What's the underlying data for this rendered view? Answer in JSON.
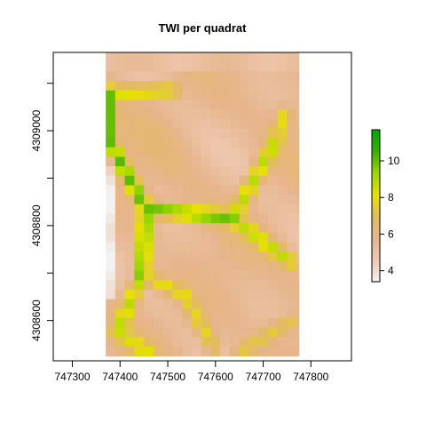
{
  "chart_data": {
    "type": "heatmap",
    "title": "TWI per quadrat",
    "xlabel": "",
    "ylabel": "",
    "x_ticks": [
      747300,
      747400,
      747500,
      747600,
      747700,
      747800
    ],
    "y_ticks": [
      4308600,
      4308800,
      4309000
    ],
    "xlim": [
      747260,
      747885
    ],
    "ylim": [
      4308515,
      4309165
    ],
    "raster_extent": {
      "xmin": 747370,
      "xmax": 747775,
      "ymin": 4308525,
      "ymax": 4309165
    },
    "cell_size": 20,
    "colorbar": {
      "ticks": [
        4,
        6,
        8,
        10
      ],
      "range": [
        3.4,
        11.7
      ]
    },
    "palette": [
      "#f2f2f2",
      "#eec9b1",
      "#e6b58c",
      "#e3bb60",
      "#e6e100",
      "#9ed700",
      "#3bb000",
      "#00a600"
    ],
    "grid": false,
    "legend_position": "right",
    "channels": [
      {
        "name": "upper-left-channel",
        "start": [
          747375,
          4309080
        ],
        "end": [
          747375,
          4308980
        ],
        "peak": 10.5
      },
      {
        "name": "upper-cross-channel",
        "start": [
          747385,
          4309080
        ],
        "end": [
          747510,
          4309085
        ],
        "peak": 8.6
      },
      {
        "name": "left-diagonal-channel",
        "start": [
          747375,
          4308980
        ],
        "end": [
          747455,
          4308835
        ],
        "peak": 10.2
      },
      {
        "name": "center-cross-channel",
        "start": [
          747455,
          4308835
        ],
        "end": [
          747635,
          4308815
        ],
        "peak": 10.0
      },
      {
        "name": "right-branch-channel",
        "start": [
          747635,
          4308815
        ],
        "end": [
          747725,
          4308975
        ],
        "peak": 8.9
      },
      {
        "name": "upper-right-channel",
        "start": [
          747725,
          4308975
        ],
        "end": [
          747745,
          4309035
        ],
        "peak": 8.0
      },
      {
        "name": "lower-right-channel",
        "start": [
          747635,
          4308815
        ],
        "end": [
          747755,
          4308725
        ],
        "peak": 8.8
      },
      {
        "name": "lower-main-channel",
        "start": [
          747455,
          4308835
        ],
        "end": [
          747445,
          4308695
        ],
        "peak": 10.1
      },
      {
        "name": "lower-left-channel",
        "start": [
          747445,
          4308695
        ],
        "end": [
          747395,
          4308575
        ],
        "peak": 8.9
      },
      {
        "name": "lower-left-fork",
        "start": [
          747395,
          4308575
        ],
        "end": [
          747455,
          4308535
        ],
        "peak": 8.4
      },
      {
        "name": "lower-center-channel",
        "start": [
          747445,
          4308695
        ],
        "end": [
          747535,
          4308655
        ],
        "peak": 8.1
      },
      {
        "name": "lower-center-channel-2",
        "start": [
          747535,
          4308655
        ],
        "end": [
          747595,
          4308545
        ],
        "peak": 7.8
      },
      {
        "name": "small-right-channel",
        "start": [
          747655,
          4308535
        ],
        "end": [
          747755,
          4308595
        ],
        "peak": 7.4
      }
    ]
  }
}
